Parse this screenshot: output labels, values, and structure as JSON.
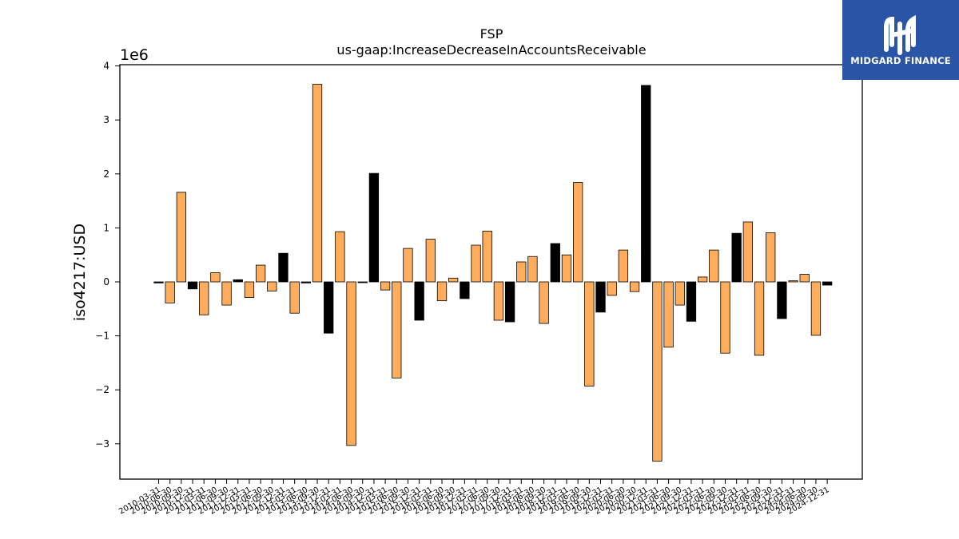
{
  "logo": {
    "text": "MIDGARD FINANCE",
    "background": "#2a54a5",
    "foreground": "#ffffff"
  },
  "chart_data": {
    "type": "bar",
    "title": "FSP",
    "subtitle": "us-gaap:IncreaseDecreaseInAccountsReceivable",
    "ylabel": "iso4217:USD",
    "xlabel": "",
    "y_multiplier_label": "1e6",
    "ylim": [
      -3.7,
      4.0
    ],
    "yticks": [
      -3,
      -2,
      -1,
      0,
      1,
      2,
      3,
      4
    ],
    "ytick_labels": [
      "−3",
      "−2",
      "−1",
      "0",
      "1",
      "2",
      "3",
      "4"
    ],
    "grid": false,
    "colors": {
      "default": "#ffad5c",
      "highlight": "#000000"
    },
    "categories": [
      "2010-03-31",
      "2010-06-30",
      "2010-09-30",
      "2010-12-31",
      "2011-03-31",
      "2011-06-30",
      "2011-09-30",
      "2011-12-31",
      "2012-03-31",
      "2012-06-30",
      "2012-09-30",
      "2012-12-31",
      "2013-03-31",
      "2013-06-30",
      "2013-09-30",
      "2013-12-31",
      "2014-03-31",
      "2014-06-30",
      "2014-09-30",
      "2014-12-31",
      "2015-03-31",
      "2015-06-30",
      "2015-09-30",
      "2015-12-31",
      "2016-03-31",
      "2016-06-30",
      "2016-09-30",
      "2016-12-31",
      "2017-03-31",
      "2017-06-30",
      "2017-09-30",
      "2017-12-31",
      "2018-03-31",
      "2018-06-30",
      "2018-09-30",
      "2018-12-31",
      "2019-03-31",
      "2019-06-30",
      "2019-09-30",
      "2019-12-31",
      "2020-03-31",
      "2020-06-30",
      "2020-09-30",
      "2020-12-31",
      "2021-03-31",
      "2021-06-30",
      "2021-09-30",
      "2021-12-31",
      "2022-03-31",
      "2022-06-30",
      "2022-09-30",
      "2022-12-31",
      "2023-03-31",
      "2023-06-30",
      "2023-09-30",
      "2023-12-31",
      "2024-03-31",
      "2024-06-30",
      "2024-09-30",
      "2024-12-31"
    ],
    "values": [
      -0.02,
      -0.39,
      1.66,
      -0.13,
      -0.61,
      0.17,
      -0.43,
      0.04,
      -0.29,
      0.31,
      -0.17,
      0.53,
      -0.58,
      -0.02,
      3.66,
      -0.95,
      0.93,
      -3.03,
      0.0,
      2.01,
      -0.15,
      -1.78,
      0.62,
      -0.71,
      0.79,
      -0.35,
      0.07,
      -0.31,
      0.68,
      0.94,
      -0.71,
      -0.74,
      0.37,
      0.47,
      -0.77,
      0.71,
      0.5,
      1.84,
      -1.93,
      -0.56,
      -0.25,
      0.59,
      -0.18,
      3.64,
      -3.32,
      -1.21,
      -0.43,
      -0.73,
      0.09,
      0.59,
      -1.32,
      0.9,
      1.11,
      -1.36,
      0.91,
      -0.68,
      0.02,
      0.14,
      -0.99,
      -0.06
    ],
    "highlight": [
      true,
      false,
      false,
      true,
      false,
      false,
      false,
      true,
      false,
      false,
      false,
      true,
      false,
      true,
      false,
      true,
      false,
      false,
      true,
      true,
      false,
      false,
      false,
      true,
      false,
      false,
      false,
      true,
      false,
      false,
      false,
      true,
      false,
      false,
      false,
      true,
      false,
      false,
      false,
      true,
      false,
      false,
      false,
      true,
      false,
      false,
      false,
      true,
      false,
      false,
      false,
      true,
      false,
      false,
      false,
      true,
      false,
      false,
      false,
      true
    ]
  }
}
